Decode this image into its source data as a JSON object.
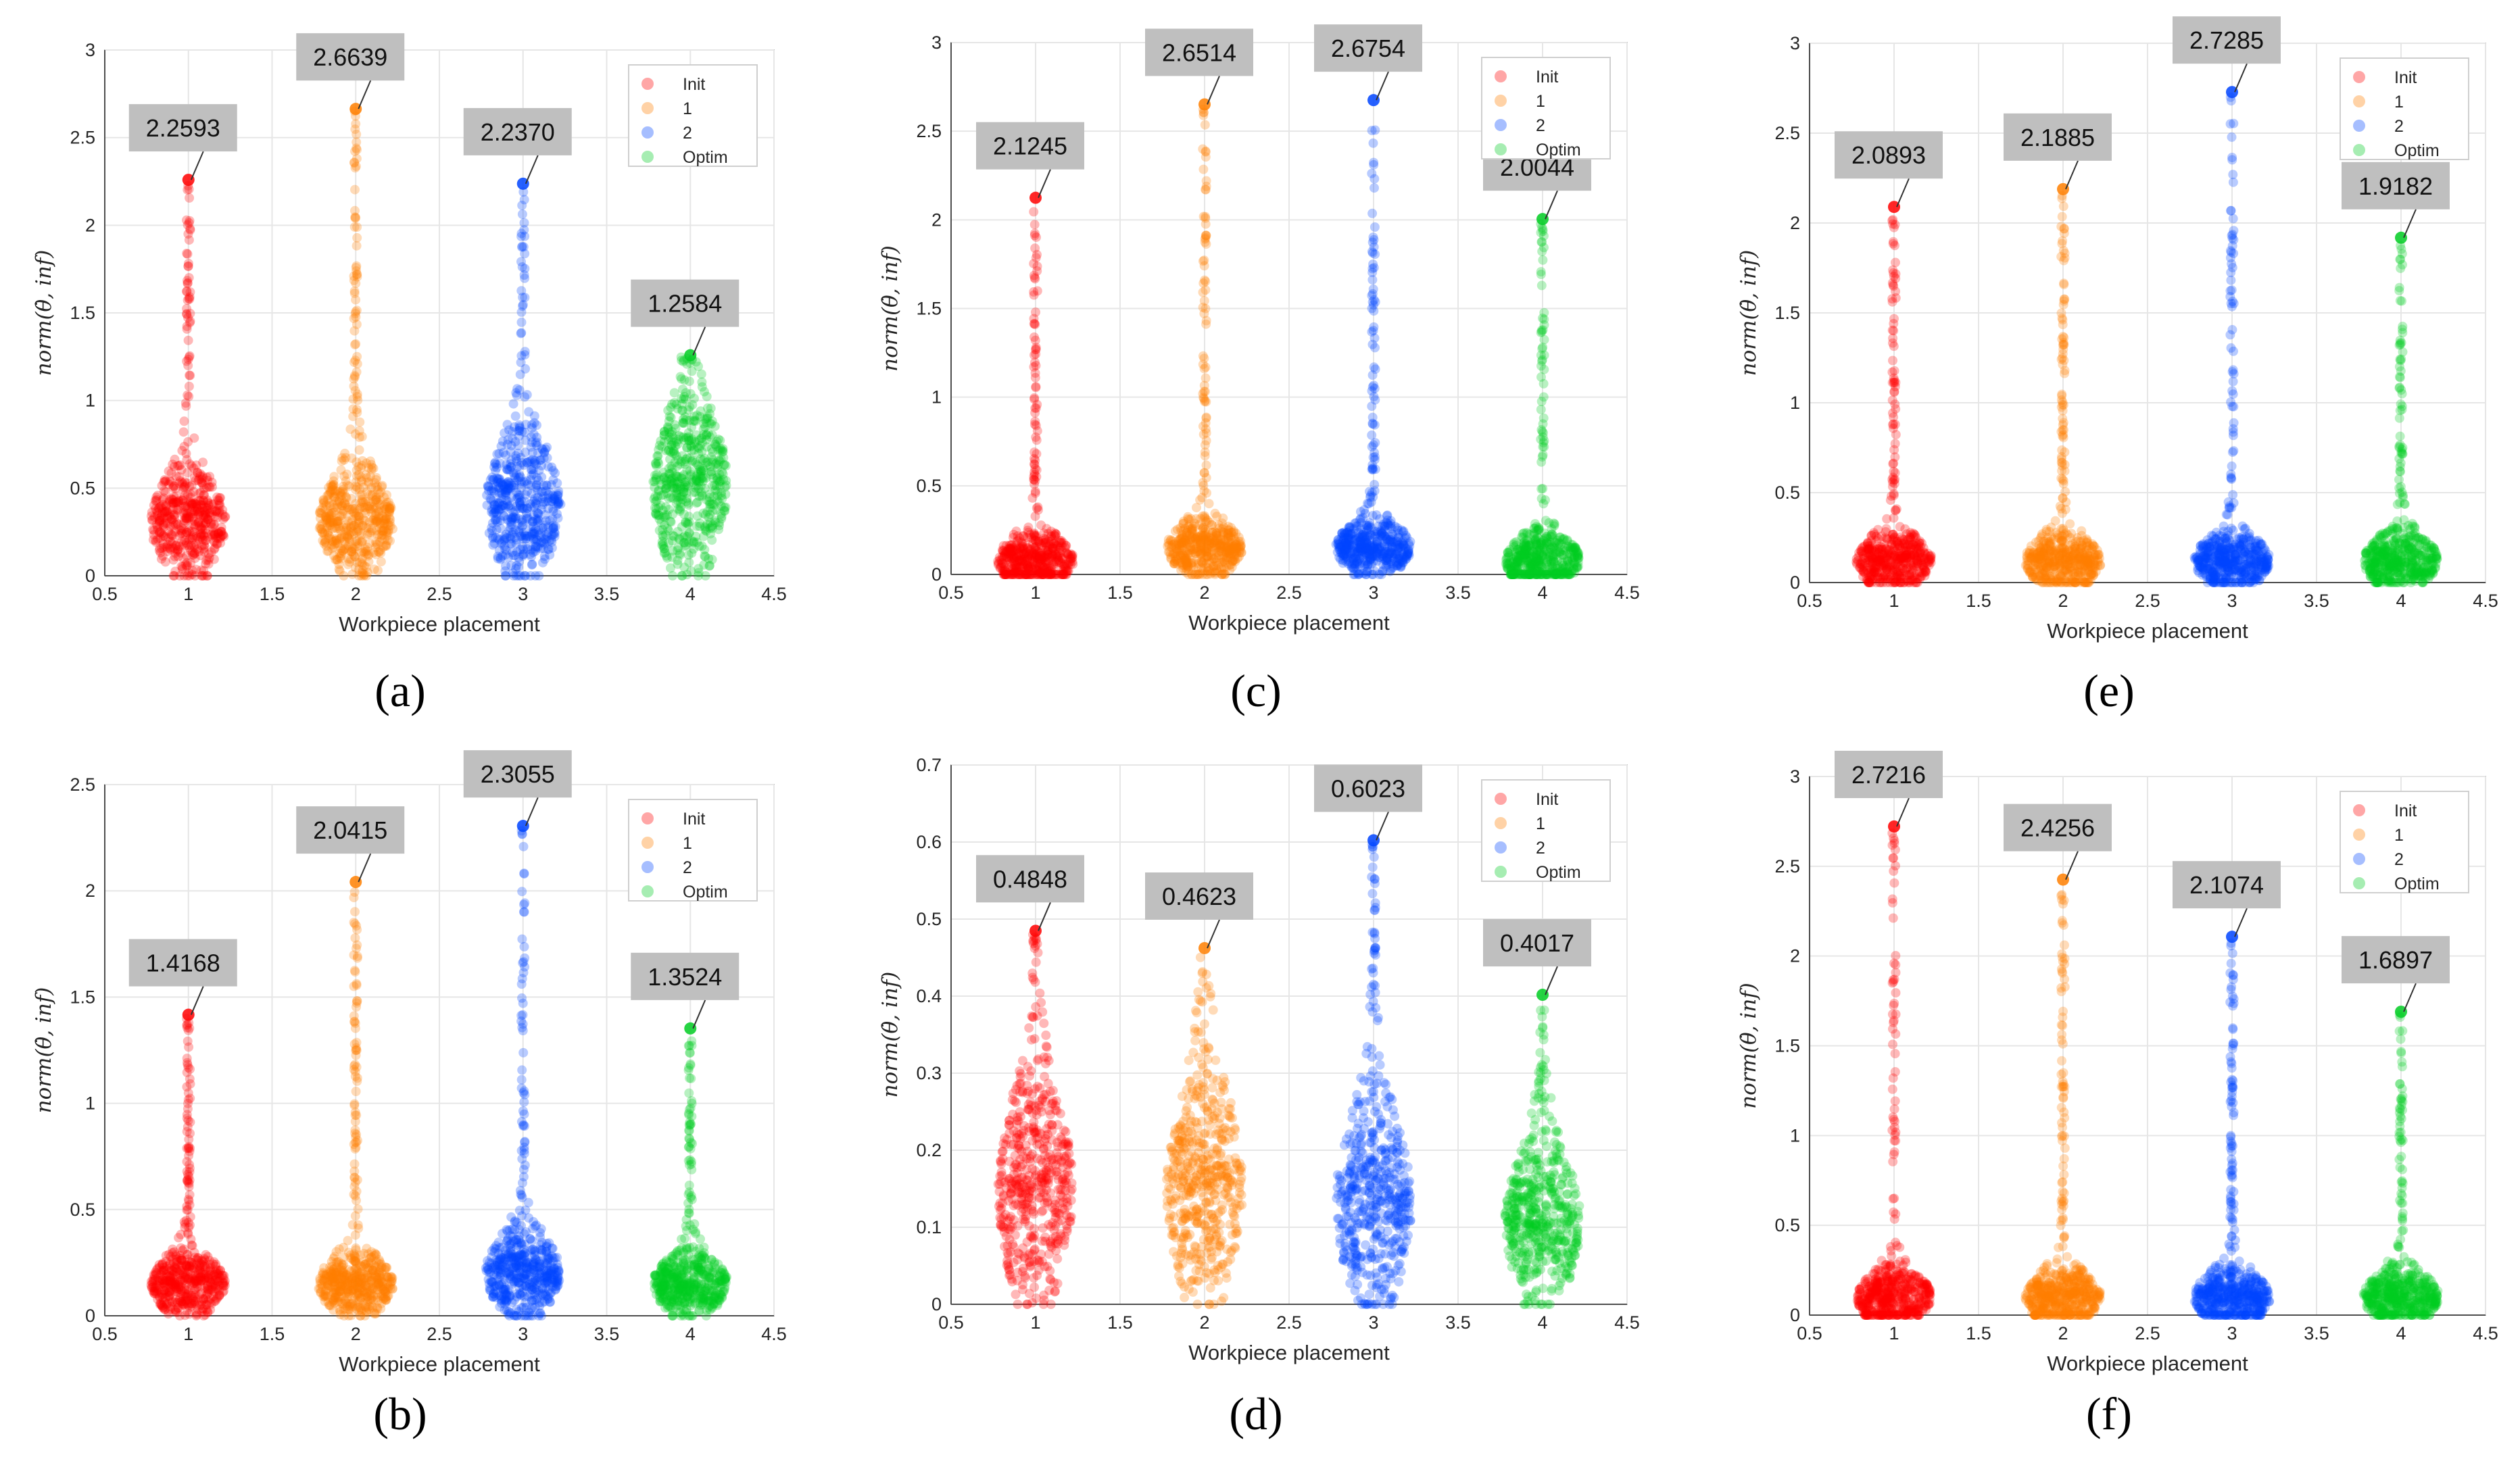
{
  "colors": {
    "Init": "#ff0000",
    "1": "#ff7f00",
    "2": "#0044ff",
    "Optim": "#00cc22"
  },
  "chart_data": [
    {
      "id": "a",
      "caption": "(a)",
      "type": "scatter",
      "title": "",
      "xlabel": "Workpiece placement",
      "ylabel": "norm(θ̇, inf)",
      "xlim": [
        0.5,
        4.5
      ],
      "ylim": [
        0,
        3
      ],
      "xticks": [
        "0.5",
        "1",
        "1.5",
        "2",
        "2.5",
        "3",
        "3.5",
        "4",
        "4.5"
      ],
      "yticks": [
        "0",
        "0.5",
        "1",
        "1.5",
        "2",
        "2.5",
        "3"
      ],
      "legend": [
        "Init",
        "1",
        "2",
        "Optim"
      ],
      "series": [
        {
          "name": "Init",
          "x": 1,
          "max": 2.2593,
          "label": "2.2593",
          "peak": 0.3,
          "width": 0.45
        },
        {
          "name": "1",
          "x": 2,
          "max": 2.6639,
          "label": "2.6639",
          "peak": 0.3,
          "width": 0.45
        },
        {
          "name": "2",
          "x": 3,
          "max": 2.237,
          "label": "2.2370",
          "peak": 0.4,
          "width": 0.45
        },
        {
          "name": "Optim",
          "x": 4,
          "max": 1.2584,
          "label": "1.2584",
          "peak": 0.5,
          "width": 0.45
        }
      ]
    },
    {
      "id": "c",
      "caption": "(c)",
      "type": "scatter",
      "title": "",
      "xlabel": "Workpiece placement",
      "ylabel": "norm(θ̇, inf)",
      "xlim": [
        0.5,
        4.5
      ],
      "ylim": [
        0,
        3
      ],
      "xticks": [
        "0.5",
        "1",
        "1.5",
        "2",
        "2.5",
        "3",
        "3.5",
        "4",
        "4.5"
      ],
      "yticks": [
        "0",
        "0.5",
        "1",
        "1.5",
        "2",
        "2.5",
        "3"
      ],
      "legend": [
        "Init",
        "1",
        "2",
        "Optim"
      ],
      "series": [
        {
          "name": "Init",
          "x": 1,
          "max": 2.1245,
          "label": "2.1245",
          "peak": 0.08,
          "width": 0.45
        },
        {
          "name": "1",
          "x": 2,
          "max": 2.6514,
          "label": "2.6514",
          "peak": 0.15,
          "width": 0.45
        },
        {
          "name": "2",
          "x": 3,
          "max": 2.6754,
          "label": "2.6754",
          "peak": 0.15,
          "width": 0.45
        },
        {
          "name": "Optim",
          "x": 4,
          "max": 2.0044,
          "label": "2.0044",
          "peak": 0.08,
          "width": 0.45
        }
      ]
    },
    {
      "id": "e",
      "caption": "(e)",
      "type": "scatter",
      "title": "",
      "xlabel": "Workpiece placement",
      "ylabel": "norm(θ̇, inf)",
      "xlim": [
        0.5,
        4.5
      ],
      "ylim": [
        0,
        3
      ],
      "xticks": [
        "0.5",
        "1",
        "1.5",
        "2",
        "2.5",
        "3",
        "3.5",
        "4",
        "4.5"
      ],
      "yticks": [
        "0",
        "0.5",
        "1",
        "1.5",
        "2",
        "2.5",
        "3"
      ],
      "legend": [
        "Init",
        "1",
        "2",
        "Optim"
      ],
      "series": [
        {
          "name": "Init",
          "x": 1,
          "max": 2.0893,
          "label": "2.0893",
          "peak": 0.12,
          "width": 0.45
        },
        {
          "name": "1",
          "x": 2,
          "max": 2.1885,
          "label": "2.1885",
          "peak": 0.12,
          "width": 0.45
        },
        {
          "name": "2",
          "x": 3,
          "max": 2.7285,
          "label": "2.7285",
          "peak": 0.12,
          "width": 0.45
        },
        {
          "name": "Optim",
          "x": 4,
          "max": 1.9182,
          "label": "1.9182",
          "peak": 0.12,
          "width": 0.45
        }
      ]
    },
    {
      "id": "b",
      "caption": "(b)",
      "type": "scatter",
      "title": "",
      "xlabel": "Workpiece placement",
      "ylabel": "norm(θ̇, inf)",
      "xlim": [
        0.5,
        4.5
      ],
      "ylim": [
        0,
        2.5
      ],
      "xticks": [
        "0.5",
        "1",
        "1.5",
        "2",
        "2.5",
        "3",
        "3.5",
        "4",
        "4.5"
      ],
      "yticks": [
        "0",
        "0.5",
        "1",
        "1.5",
        "2",
        "2.5"
      ],
      "legend": [
        "Init",
        "1",
        "2",
        "Optim"
      ],
      "series": [
        {
          "name": "Init",
          "x": 1,
          "max": 1.4168,
          "label": "1.4168",
          "peak": 0.15,
          "width": 0.45
        },
        {
          "name": "1",
          "x": 2,
          "max": 2.0415,
          "label": "2.0415",
          "peak": 0.15,
          "width": 0.45
        },
        {
          "name": "2",
          "x": 3,
          "max": 2.3055,
          "label": "2.3055",
          "peak": 0.2,
          "width": 0.45
        },
        {
          "name": "Optim",
          "x": 4,
          "max": 1.3524,
          "label": "1.3524",
          "peak": 0.15,
          "width": 0.45
        }
      ]
    },
    {
      "id": "d",
      "caption": "(d)",
      "type": "scatter",
      "title": "",
      "xlabel": "Workpiece placement",
      "ylabel": "norm(θ̇, inf)",
      "xlim": [
        0.5,
        4.5
      ],
      "ylim": [
        0,
        0.7
      ],
      "xticks": [
        "0.5",
        "1",
        "1.5",
        "2",
        "2.5",
        "3",
        "3.5",
        "4",
        "4.5"
      ],
      "yticks": [
        "0",
        "0.1",
        "0.2",
        "0.3",
        "0.4",
        "0.5",
        "0.6",
        "0.7"
      ],
      "legend": [
        "Init",
        "1",
        "2",
        "Optim"
      ],
      "series": [
        {
          "name": "Init",
          "x": 1,
          "max": 0.4848,
          "label": "0.4848",
          "peak": 0.145,
          "width": 0.45
        },
        {
          "name": "1",
          "x": 2,
          "max": 0.4623,
          "label": "0.4623",
          "peak": 0.15,
          "width": 0.45
        },
        {
          "name": "2",
          "x": 3,
          "max": 0.6023,
          "label": "0.6023",
          "peak": 0.13,
          "width": 0.45
        },
        {
          "name": "Optim",
          "x": 4,
          "max": 0.4017,
          "label": "0.4017",
          "peak": 0.105,
          "width": 0.45
        }
      ]
    },
    {
      "id": "f",
      "caption": "(f)",
      "type": "scatter",
      "title": "",
      "xlabel": "Workpiece placement",
      "ylabel": "norm(θ̇, inf)",
      "xlim": [
        0.5,
        4.5
      ],
      "ylim": [
        0,
        3
      ],
      "xticks": [
        "0.5",
        "1",
        "1.5",
        "2",
        "2.5",
        "3",
        "3.5",
        "4",
        "4.5"
      ],
      "yticks": [
        "0",
        "0.5",
        "1",
        "1.5",
        "2",
        "2.5",
        "3"
      ],
      "legend": [
        "Init",
        "1",
        "2",
        "Optim"
      ],
      "series": [
        {
          "name": "Init",
          "x": 1,
          "max": 2.7216,
          "label": "2.7216",
          "peak": 0.1,
          "width": 0.45
        },
        {
          "name": "1",
          "x": 2,
          "max": 2.4256,
          "label": "2.4256",
          "peak": 0.1,
          "width": 0.45
        },
        {
          "name": "2",
          "x": 3,
          "max": 2.1074,
          "label": "2.1074",
          "peak": 0.1,
          "width": 0.45
        },
        {
          "name": "Optim",
          "x": 4,
          "max": 1.6897,
          "label": "1.6897",
          "peak": 0.1,
          "width": 0.45
        }
      ]
    }
  ]
}
